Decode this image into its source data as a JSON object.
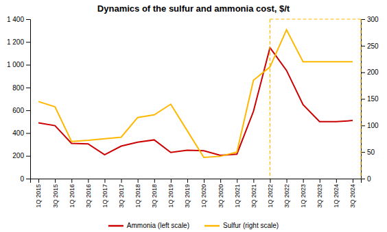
{
  "chart_data": {
    "type": "line",
    "title": "Dynamics of the sulfur and ammonia cost, $/t",
    "categories": [
      "1Q 2015",
      "3Q 2015",
      "1Q 2016",
      "3Q 2016",
      "1Q 2017",
      "3Q 2017",
      "1Q 2018",
      "3Q 2018",
      "1Q 2019",
      "3Q 2019",
      "1Q 2020",
      "3Q 2020",
      "1Q 2021",
      "3Q 2021",
      "1Q 2022",
      "3Q 2022",
      "1Q 2023",
      "3Q 2023",
      "1Q 2024",
      "3Q 2024"
    ],
    "series": [
      {
        "name": "Ammonia (left scale)",
        "color": "#cc0000",
        "values": [
          490,
          465,
          310,
          305,
          210,
          285,
          320,
          340,
          230,
          250,
          245,
          205,
          215,
          590,
          1150,
          950,
          650,
          500,
          500,
          510
        ]
      },
      {
        "name": "Sulfur (right scale)",
        "color": "#ffb800",
        "axis": "y2",
        "values": [
          145,
          135,
          70,
          72,
          75,
          78,
          115,
          120,
          140,
          90,
          40,
          42,
          50,
          185,
          210,
          280,
          220,
          220,
          220,
          220
        ]
      }
    ],
    "ylim": [
      0,
      1400
    ],
    "yticks": [
      0,
      200,
      400,
      600,
      800,
      {
        "value": 1000,
        "label": "1 000"
      },
      {
        "value": 1200,
        "label": "1 200"
      },
      {
        "value": 1400,
        "label": "1 400"
      }
    ],
    "y2lim": [
      0,
      300
    ],
    "y2ticks": [
      0,
      50,
      100,
      150,
      200,
      250,
      300
    ],
    "vertical_line": {
      "x": "1Q 2022",
      "color": "#ffb800"
    },
    "grid": false,
    "legend": "bottom"
  }
}
